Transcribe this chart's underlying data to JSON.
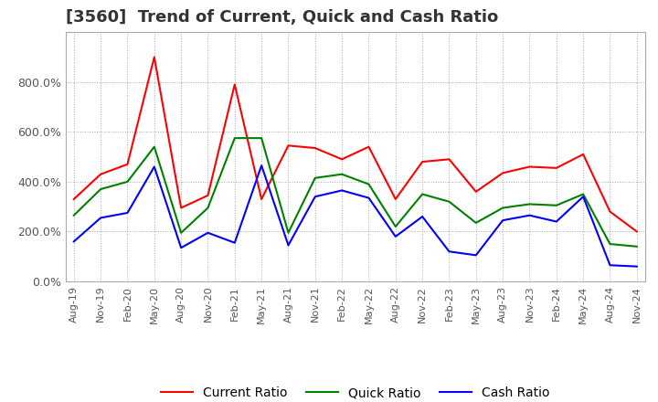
{
  "title": "[3560]  Trend of Current, Quick and Cash Ratio",
  "title_fontsize": 13,
  "ylim": [
    0,
    1000
  ],
  "yticks": [
    0,
    200,
    400,
    600,
    800
  ],
  "yticklabels": [
    "0.0%",
    "200.0%",
    "400.0%",
    "600.0%",
    "800.0%"
  ],
  "background_color": "#ffffff",
  "grid_color": "#aaaaaa",
  "legend_entries": [
    "Current Ratio",
    "Quick Ratio",
    "Cash Ratio"
  ],
  "line_colors": [
    "#ff0000",
    "#008000",
    "#0000ff"
  ],
  "x_labels": [
    "Aug-19",
    "Nov-19",
    "Feb-20",
    "May-20",
    "Aug-20",
    "Nov-20",
    "Feb-21",
    "May-21",
    "Aug-21",
    "Nov-21",
    "Feb-22",
    "May-22",
    "Aug-22",
    "Nov-22",
    "Feb-23",
    "May-23",
    "Aug-23",
    "Nov-23",
    "Feb-24",
    "May-24",
    "Aug-24",
    "Nov-24"
  ],
  "current_ratio": [
    330,
    430,
    470,
    900,
    295,
    345,
    790,
    330,
    545,
    535,
    490,
    540,
    330,
    480,
    490,
    360,
    435,
    460,
    455,
    510,
    280,
    200
  ],
  "quick_ratio": [
    265,
    370,
    400,
    540,
    195,
    295,
    575,
    575,
    195,
    415,
    430,
    390,
    220,
    350,
    320,
    235,
    295,
    310,
    305,
    350,
    150,
    140
  ],
  "cash_ratio": [
    160,
    255,
    275,
    460,
    135,
    195,
    155,
    465,
    145,
    340,
    365,
    335,
    180,
    260,
    120,
    105,
    245,
    265,
    240,
    340,
    65,
    60
  ]
}
